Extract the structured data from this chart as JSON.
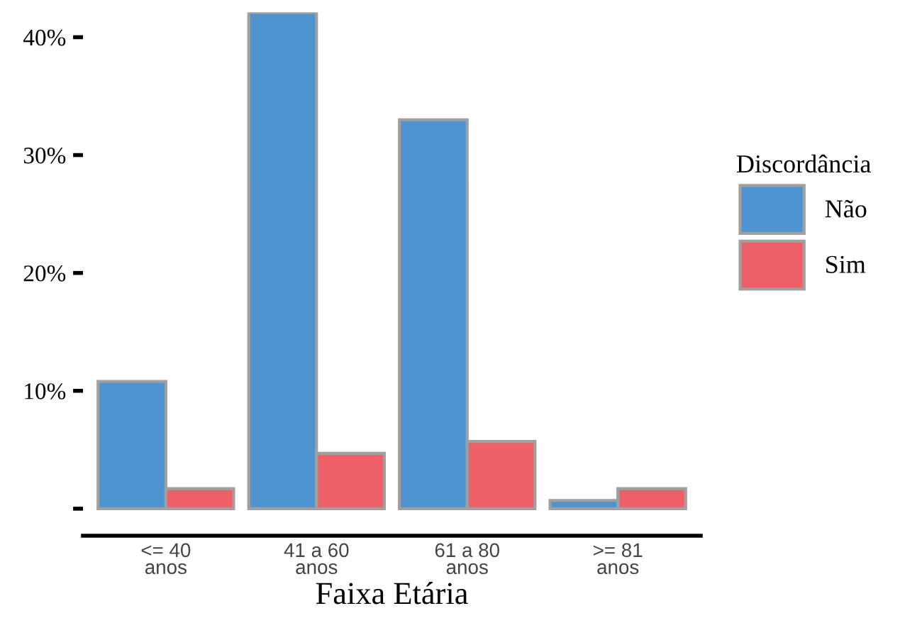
{
  "chart_data": {
    "type": "bar",
    "xlabel": "Faixa Etária",
    "legend_title": "Discordância",
    "legend": "right",
    "categories": [
      "<= 40\nanos",
      "41 a 60\nanos",
      "61 a 80\nanos",
      ">= 81\nanos"
    ],
    "series": [
      {
        "name": "Não",
        "color": "#4e94d0",
        "values": [
          10.8,
          42.1,
          33.0,
          0.7
        ]
      },
      {
        "name": "Sim",
        "color": "#ee6068",
        "values": [
          1.7,
          4.7,
          5.7,
          1.7
        ]
      }
    ],
    "ylim": [
      -2.3,
      42.1
    ],
    "yticks": [
      {
        "value": 0,
        "label": null
      },
      {
        "value": 10,
        "label": "10%"
      },
      {
        "value": 20,
        "label": "20%"
      },
      {
        "value": 30,
        "label": "30%"
      },
      {
        "value": 40,
        "label": "40%"
      }
    ],
    "grid": false
  }
}
